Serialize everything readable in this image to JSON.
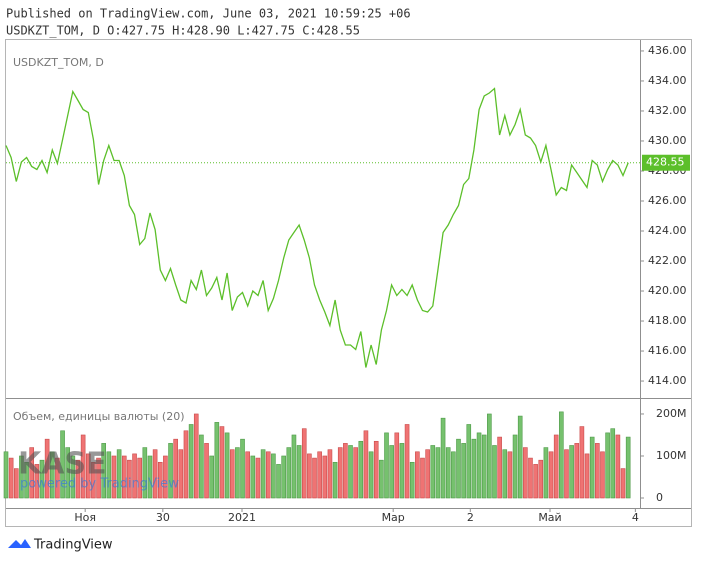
{
  "header": {
    "published": "Published on TradingView.com, June 03, 2021 10:59:25 +06",
    "ohlc": "USDKZT_TOM, D O:427.75 H:428.90 L:427.75 C:428.55"
  },
  "footer": {
    "brand": "TradingView"
  },
  "chart_data": {
    "type": "line",
    "watermark": "KASE",
    "watermark_sub": "powered by TradingView",
    "xlim": [
      0,
      123.3
    ],
    "xticks": [
      {
        "value": 15.4,
        "label": "Ноя"
      },
      {
        "value": 30.5,
        "label": "30"
      },
      {
        "value": 45.9,
        "label": "2021"
      },
      {
        "value": 75.3,
        "label": "Мар"
      },
      {
        "value": 90.3,
        "label": "2"
      },
      {
        "value": 105.8,
        "label": "Май"
      },
      {
        "value": 122.4,
        "label": "4"
      }
    ],
    "ylim": [
      412.87,
      436.73
    ],
    "yticks": [
      {
        "value": 414,
        "label": "414.00"
      },
      {
        "value": 416,
        "label": "416.00"
      },
      {
        "value": 418,
        "label": "418.00"
      },
      {
        "value": 420,
        "label": "420.00"
      },
      {
        "value": 422,
        "label": "422.00"
      },
      {
        "value": 424,
        "label": "424.00"
      },
      {
        "value": 426,
        "label": "426.00"
      },
      {
        "value": 428,
        "label": "428.00"
      },
      {
        "value": 430,
        "label": "430.00"
      },
      {
        "value": 432,
        "label": "432.00"
      },
      {
        "value": 434,
        "label": "434.00"
      },
      {
        "value": 436,
        "label": "436.00"
      }
    ],
    "y2lim": [
      -23.8,
      238
    ],
    "y2ticks": [
      0,
      {
        "value": 100,
        "label": "100M"
      },
      {
        "value": 200,
        "label": "200M"
      }
    ],
    "up_color": "#76c16e",
    "down_color": "#ef7373",
    "series": [
      {
        "name": "USDKZT_TOM, D",
        "color": "#5cbf2a",
        "values": [
          429.7,
          428.9,
          427.3,
          428.6,
          428.9,
          428.3,
          428.1,
          428.7,
          427.9,
          429.4,
          428.5,
          430.1,
          431.7,
          433.3,
          432.7,
          432.1,
          431.9,
          430.1,
          427.1,
          428.7,
          429.7,
          428.7,
          428.7,
          427.7,
          425.7,
          425.1,
          423.1,
          423.5,
          425.2,
          424.1,
          421.4,
          420.7,
          421.5,
          420.4,
          419.4,
          419.2,
          420.7,
          420.1,
          421.4,
          419.7,
          420.2,
          420.9,
          419.4,
          421.2,
          418.7,
          419.6,
          419.9,
          419.0,
          420.0,
          419.7,
          420.7,
          418.7,
          419.5,
          420.7,
          422.2,
          423.4,
          423.9,
          424.4,
          423.4,
          422.2,
          420.4,
          419.4,
          418.6,
          417.7,
          419.4,
          417.4,
          416.4,
          416.4,
          416.1,
          417.3,
          414.9,
          416.4,
          415.1,
          417.4,
          418.7,
          420.4,
          419.7,
          420.1,
          419.7,
          420.4,
          419.4,
          418.7,
          418.6,
          419.0,
          421.4,
          423.9,
          424.4,
          425.1,
          425.7,
          427.1,
          427.5,
          429.4,
          432.1,
          433.0,
          433.2,
          433.5,
          430.4,
          431.7,
          430.4,
          431.1,
          432.1,
          430.4,
          430.2,
          429.7,
          428.6,
          429.7,
          428.1,
          426.4,
          426.9,
          426.7,
          428.4,
          427.9,
          427.4,
          426.9,
          428.7,
          428.4,
          427.3,
          428.1,
          428.7,
          428.4,
          427.7,
          428.55
        ]
      },
      {
        "name": "Объем, единицы валюты (20)",
        "axis": "y2",
        "values": [
          110,
          95,
          70,
          100,
          85,
          120,
          80,
          90,
          140,
          110,
          95,
          160,
          120,
          100,
          90,
          150,
          105,
          85,
          95,
          130,
          110,
          100,
          115,
          100,
          90,
          105,
          95,
          120,
          100,
          115,
          85,
          100,
          130,
          140,
          115,
          160,
          175,
          200,
          150,
          130,
          100,
          180,
          170,
          155,
          115,
          120,
          140,
          110,
          100,
          95,
          115,
          110,
          105,
          80,
          100,
          120,
          150,
          125,
          165,
          105,
          95,
          110,
          100,
          115,
          85,
          120,
          130,
          125,
          120,
          135,
          160,
          110,
          135,
          90,
          155,
          125,
          155,
          130,
          175,
          85,
          110,
          95,
          115,
          125,
          120,
          190,
          120,
          110,
          140,
          130,
          175,
          140,
          155,
          150,
          200,
          125,
          145,
          115,
          110,
          150,
          195,
          120,
          95,
          80,
          90,
          120,
          110,
          150,
          205,
          115,
          125,
          130,
          170,
          105,
          145,
          130,
          110,
          155,
          165,
          150,
          70,
          145
        ]
      }
    ]
  }
}
